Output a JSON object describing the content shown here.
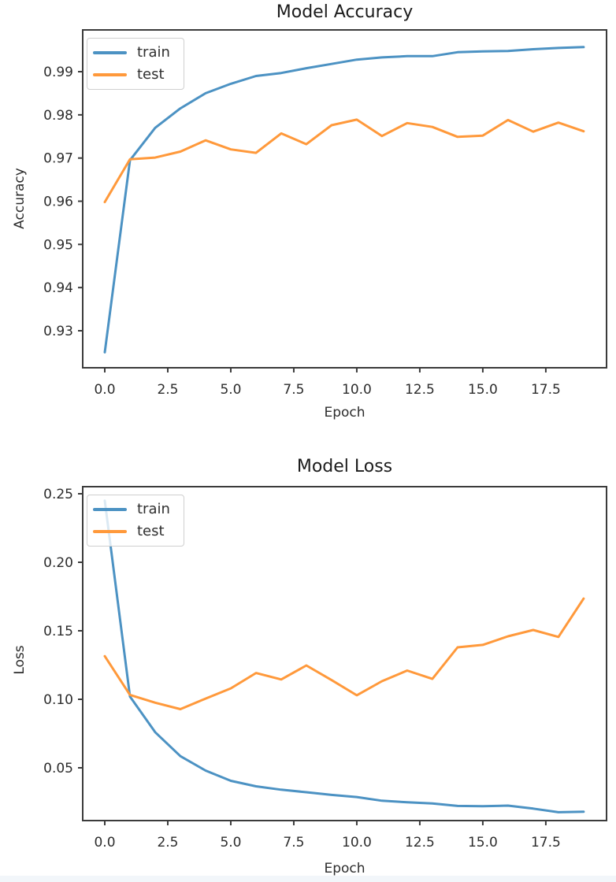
{
  "figure": {
    "background": "#ffffff",
    "spine_color": "#3b3b3b",
    "bottom_strip_color": "#f2f6fa"
  },
  "chart_data": [
    {
      "type": "line",
      "title": "Model Accuracy",
      "xlabel": "Epoch",
      "ylabel": "Accuracy",
      "x": [
        0,
        1,
        2,
        3,
        4,
        5,
        6,
        7,
        8,
        9,
        10,
        11,
        12,
        13,
        14,
        15,
        16,
        17,
        18,
        19
      ],
      "series": [
        {
          "name": "train",
          "color": "#4c92c3",
          "values": [
            0.925,
            0.9695,
            0.977,
            0.9815,
            0.985,
            0.9872,
            0.989,
            0.9897,
            0.9908,
            0.9918,
            0.9928,
            0.9933,
            0.9936,
            0.9936,
            0.9945,
            0.9947,
            0.9948,
            0.9952,
            0.9955,
            0.9957
          ]
        },
        {
          "name": "test",
          "color": "#ff993b",
          "values": [
            0.9598,
            0.9697,
            0.9701,
            0.9715,
            0.9741,
            0.972,
            0.9712,
            0.9757,
            0.9732,
            0.9776,
            0.9789,
            0.9751,
            0.9781,
            0.9772,
            0.9749,
            0.9752,
            0.9788,
            0.9761,
            0.9782,
            0.9762
          ]
        }
      ],
      "xlim": [
        -0.875,
        19.91
      ],
      "ylim": [
        0.92143,
        0.99967
      ],
      "xticks": {
        "values": [
          0,
          2.5,
          5,
          7.5,
          10,
          12.5,
          15,
          17.5
        ],
        "labels": [
          "0.0",
          "2.5",
          "5.0",
          "7.5",
          "10.0",
          "12.5",
          "15.0",
          "17.5"
        ]
      },
      "yticks": {
        "values": [
          0.99,
          0.98,
          0.97,
          0.96,
          0.95,
          0.94,
          0.93
        ],
        "labels": [
          "0.99",
          "0.98",
          "0.97",
          "0.96",
          "0.95",
          "0.94",
          "0.93"
        ]
      },
      "legend": {
        "position": "upper-left",
        "entries": [
          "train",
          "test"
        ]
      },
      "grid": false
    },
    {
      "type": "line",
      "title": "Model Loss",
      "xlabel": "Epoch",
      "ylabel": "Loss",
      "x": [
        0,
        1,
        2,
        3,
        4,
        5,
        6,
        7,
        8,
        9,
        10,
        11,
        12,
        13,
        14,
        15,
        16,
        17,
        18,
        19
      ],
      "series": [
        {
          "name": "train",
          "color": "#4c92c3",
          "values": [
            0.245,
            0.102,
            0.076,
            0.0585,
            0.048,
            0.0405,
            0.0365,
            0.034,
            0.0322,
            0.0302,
            0.0287,
            0.026,
            0.0248,
            0.024,
            0.0222,
            0.022,
            0.0224,
            0.0202,
            0.0176,
            0.018
          ]
        },
        {
          "name": "test",
          "color": "#ff993b",
          "values": [
            0.1315,
            0.1032,
            0.0975,
            0.0928,
            0.1005,
            0.108,
            0.1192,
            0.1145,
            0.1247,
            0.114,
            0.1029,
            0.1132,
            0.121,
            0.1149,
            0.1379,
            0.1397,
            0.146,
            0.1506,
            0.1455,
            0.1735
          ]
        }
      ],
      "xlim": [
        -0.875,
        19.91
      ],
      "ylim": [
        0.01149,
        0.25517
      ],
      "xticks": {
        "values": [
          0,
          2.5,
          5,
          7.5,
          10,
          12.5,
          15,
          17.5
        ],
        "labels": [
          "0.0",
          "2.5",
          "5.0",
          "7.5",
          "10.0",
          "12.5",
          "15.0",
          "17.5"
        ]
      },
      "yticks": {
        "values": [
          0.25,
          0.2,
          0.15,
          0.1,
          0.05
        ],
        "labels": [
          "0.25",
          "0.20",
          "0.15",
          "0.10",
          "0.05"
        ]
      },
      "legend": {
        "position": "upper-left",
        "entries": [
          "train",
          "test"
        ]
      },
      "grid": false
    }
  ]
}
